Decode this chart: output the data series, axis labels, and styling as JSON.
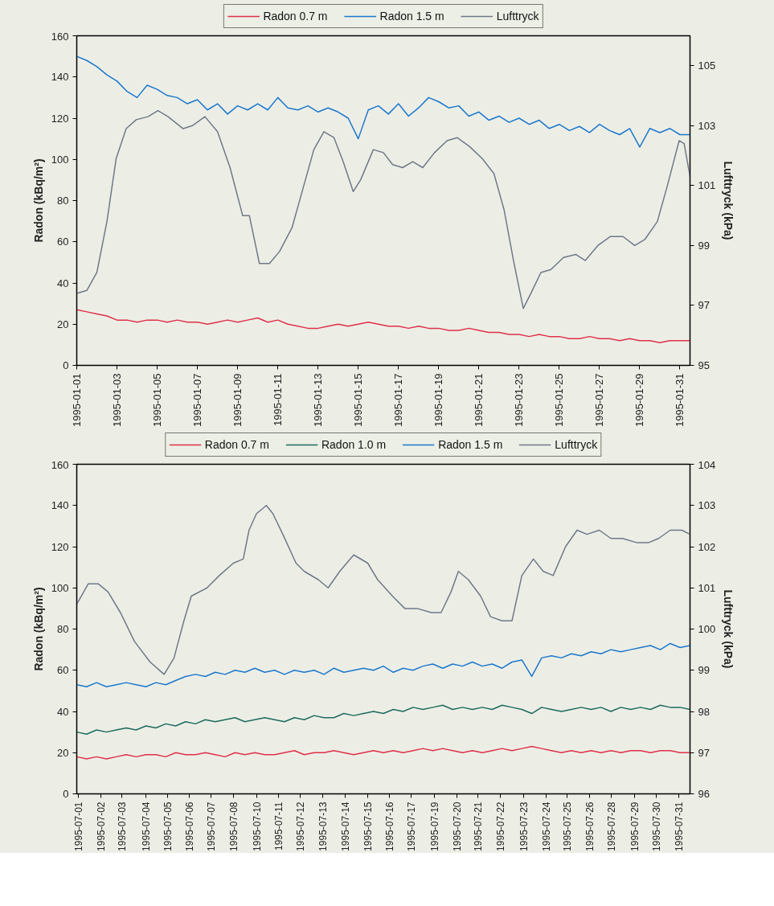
{
  "chart_data": [
    {
      "type": "line",
      "ylabel": "Radon (kBq/m²)",
      "y2label": "Lufttryck (kPa)",
      "legend": "top",
      "grid": false,
      "xlim": [
        "1995-01-01T00:00",
        "1995-01-31T12:00"
      ],
      "ylim": [
        0,
        160
      ],
      "yticks": [
        0,
        20,
        40,
        60,
        80,
        100,
        120,
        140,
        160
      ],
      "y2lim": [
        95,
        106
      ],
      "y2ticks": [
        95,
        97,
        99,
        101,
        103,
        105
      ],
      "xticks": [
        "1995-01-01",
        "1995-01-03",
        "1995-01-05",
        "1995-01-07",
        "1995-01-09",
        "1995-01-11",
        "1995-01-13",
        "1995-01-15",
        "1995-01-17",
        "1995-01-19",
        "1995-01-21",
        "1995-01-23",
        "1995-01-25",
        "1995-01-27",
        "1995-01-29",
        "1995-01-31"
      ],
      "x": [
        "1995-01-01T00:00",
        "1995-01-01T12:00",
        "1995-01-02T00:00",
        "1995-01-02T12:00",
        "1995-01-03T00:00",
        "1995-01-03T12:00",
        "1995-01-04T00:00",
        "1995-01-04T12:00",
        "1995-01-05T00:00",
        "1995-01-05T12:00",
        "1995-01-06T00:00",
        "1995-01-06T12:00",
        "1995-01-07T00:00",
        "1995-01-07T12:00",
        "1995-01-08T00:00",
        "1995-01-08T12:00",
        "1995-01-09T00:00",
        "1995-01-09T12:00",
        "1995-01-10T00:00",
        "1995-01-10T12:00",
        "1995-01-11T00:00",
        "1995-01-11T12:00",
        "1995-01-12T00:00",
        "1995-01-12T12:00",
        "1995-01-13T00:00",
        "1995-01-13T12:00",
        "1995-01-14T00:00",
        "1995-01-14T12:00",
        "1995-01-15T00:00",
        "1995-01-15T12:00",
        "1995-01-16T00:00",
        "1995-01-16T12:00",
        "1995-01-17T00:00",
        "1995-01-17T12:00",
        "1995-01-18T00:00",
        "1995-01-18T12:00",
        "1995-01-19T00:00",
        "1995-01-19T12:00",
        "1995-01-20T00:00",
        "1995-01-20T12:00",
        "1995-01-21T00:00",
        "1995-01-21T12:00",
        "1995-01-22T00:00",
        "1995-01-22T12:00",
        "1995-01-23T00:00",
        "1995-01-23T12:00",
        "1995-01-24T00:00",
        "1995-01-24T12:00",
        "1995-01-25T00:00",
        "1995-01-25T12:00",
        "1995-01-26T00:00",
        "1995-01-26T12:00",
        "1995-01-27T00:00",
        "1995-01-27T12:00",
        "1995-01-28T00:00",
        "1995-01-28T12:00",
        "1995-01-29T00:00",
        "1995-01-29T12:00",
        "1995-01-30T00:00",
        "1995-01-30T12:00",
        "1995-01-31T00:00",
        "1995-01-31T12:00"
      ],
      "series": [
        {
          "name": "Radon 0.7 m",
          "color": "#e0304a",
          "values": [
            27,
            26,
            25,
            24,
            22,
            22,
            21,
            22,
            22,
            21,
            22,
            21,
            21,
            20,
            21,
            22,
            21,
            22,
            23,
            21,
            22,
            20,
            19,
            18,
            18,
            19,
            20,
            19,
            20,
            21,
            20,
            19,
            19,
            18,
            19,
            18,
            18,
            17,
            17,
            18,
            17,
            16,
            16,
            15,
            15,
            14,
            15,
            14,
            14,
            13,
            13,
            14,
            13,
            13,
            12,
            13,
            12,
            12,
            11,
            12,
            12,
            12
          ]
        },
        {
          "name": "Radon 1.5 m",
          "color": "#1c78cc",
          "values": [
            150,
            148,
            145,
            141,
            138,
            133,
            130,
            136,
            134,
            131,
            130,
            127,
            129,
            124,
            127,
            122,
            126,
            124,
            127,
            124,
            130,
            125,
            124,
            126,
            123,
            125,
            123,
            120,
            110,
            124,
            126,
            122,
            127,
            121,
            125,
            130,
            128,
            125,
            126,
            121,
            123,
            119,
            121,
            118,
            120,
            117,
            119,
            115,
            117,
            114,
            116,
            113,
            117,
            114,
            112,
            115,
            106,
            115,
            113,
            115,
            112,
            112
          ]
        },
        {
          "name": "Lufttryck",
          "color": "#707888",
          "axis": "y2",
          "x": [
            "1995-01-01T00:00",
            "1995-01-01T12:00",
            "1995-01-02T00:00",
            "1995-01-02T12:00",
            "1995-01-02T23:00",
            "1995-01-03T11:00",
            "1995-01-03T23:00",
            "1995-01-04T13:00",
            "1995-01-05T01:00",
            "1995-01-05T13:00",
            "1995-01-06T07:00",
            "1995-01-06T18:00",
            "1995-01-07T09:00",
            "1995-01-08T00:00",
            "1995-01-08T15:00",
            "1995-01-09T06:00",
            "1995-01-09T14:00",
            "1995-01-10T02:00",
            "1995-01-10T14:00",
            "1995-01-11T02:00",
            "1995-01-11T17:00",
            "1995-01-12T07:00",
            "1995-01-12T19:00",
            "1995-01-13T07:00",
            "1995-01-13T19:00",
            "1995-01-14T06:00",
            "1995-01-14T18:00",
            "1995-01-15T03:00",
            "1995-01-15T18:00",
            "1995-01-16T06:00",
            "1995-01-16T17:00",
            "1995-01-17T05:00",
            "1995-01-17T17:00",
            "1995-01-18T05:00",
            "1995-01-18T19:00",
            "1995-01-19T10:00",
            "1995-01-19T22:00",
            "1995-01-20T13:00",
            "1995-01-21T04:00",
            "1995-01-21T18:00",
            "1995-01-22T06:00",
            "1995-01-22T18:00",
            "1995-01-23T05:00",
            "1995-01-23T14:00",
            "1995-01-24T02:00",
            "1995-01-24T14:00",
            "1995-01-25T05:00",
            "1995-01-25T20:00",
            "1995-01-26T07:00",
            "1995-01-26T22:00",
            "1995-01-27T13:00",
            "1995-01-28T04:00",
            "1995-01-28T18:00",
            "1995-01-29T06:00",
            "1995-01-29T21:00",
            "1995-01-30T09:00",
            "1995-01-30T23:00",
            "1995-01-31T05:00",
            "1995-01-31T12:00"
          ],
          "values": [
            97.4,
            97.5,
            98.1,
            99.8,
            101.9,
            102.9,
            103.2,
            103.3,
            103.5,
            103.3,
            102.9,
            103.0,
            103.3,
            102.8,
            101.6,
            100.0,
            100.0,
            98.4,
            98.4,
            98.8,
            99.6,
            101.0,
            102.2,
            102.8,
            102.6,
            101.8,
            100.8,
            101.2,
            102.2,
            102.1,
            101.7,
            101.6,
            101.8,
            101.6,
            102.1,
            102.5,
            102.6,
            102.3,
            101.9,
            101.4,
            100.2,
            98.4,
            96.9,
            97.4,
            98.1,
            98.2,
            98.6,
            98.7,
            98.5,
            99.0,
            99.3,
            99.3,
            99.0,
            99.2,
            99.8,
            101.0,
            102.5,
            102.4,
            101.3
          ]
        }
      ]
    },
    {
      "type": "line",
      "ylabel": "Radon (kBq/m²)",
      "y2label": "Lufttryck (kPa)",
      "legend": "top",
      "grid": false,
      "xlim": [
        "1995-07-01T00:00",
        "1995-08-01T00:00"
      ],
      "ylim": [
        0,
        160
      ],
      "yticks": [
        0,
        20,
        40,
        60,
        80,
        100,
        120,
        140,
        160
      ],
      "y2lim": [
        96,
        104
      ],
      "y2ticks": [
        96,
        97,
        98,
        99,
        100,
        101,
        102,
        103,
        104
      ],
      "xticks": [
        {
          "value": "1995-07-01T02:00",
          "label": "1995-07-01"
        },
        {
          "value": "1995-07-02T05:00",
          "label": "1995-07-02"
        },
        {
          "value": "1995-07-03T07:00",
          "label": "1995-07-03"
        },
        {
          "value": "1995-07-04T12:00",
          "label": "1995-07-04"
        },
        {
          "value": "1995-07-05T14:00",
          "label": "1995-07-05"
        },
        {
          "value": "1995-07-06T17:00",
          "label": "1995-07-06"
        },
        {
          "value": "1995-07-07T19:00",
          "label": "1995-07-07"
        },
        {
          "value": "1995-07-08T22:00",
          "label": "1995-07-08"
        },
        {
          "value": "1995-07-10T02:00",
          "label": "1995-07-10"
        },
        {
          "value": "1995-07-11T05:00",
          "label": "1995-07-11"
        },
        {
          "value": "1995-07-12T07:00",
          "label": "1995-07-12"
        },
        {
          "value": "1995-07-13T10:00",
          "label": "1995-07-13"
        },
        {
          "value": "1995-07-14T14:00",
          "label": "1995-07-14"
        },
        {
          "value": "1995-07-15T17:00",
          "label": "1995-07-15"
        },
        {
          "value": "1995-07-16T19:00",
          "label": "1995-07-16"
        },
        {
          "value": "1995-07-17T22:00",
          "label": "1995-07-17"
        },
        {
          "value": "1995-07-19T02:00",
          "label": "1995-07-19"
        },
        {
          "value": "1995-07-20T05:00",
          "label": "1995-07-20"
        },
        {
          "value": "1995-07-21T07:00",
          "label": "1995-07-21"
        },
        {
          "value": "1995-07-22T10:00",
          "label": "1995-07-22"
        },
        {
          "value": "1995-07-23T14:00",
          "label": "1995-07-23"
        },
        {
          "value": "1995-07-24T17:00",
          "label": "1995-07-24"
        },
        {
          "value": "1995-07-25T19:00",
          "label": "1995-07-25"
        },
        {
          "value": "1995-07-26T22:00",
          "label": "1995-07-26"
        },
        {
          "value": "1995-07-28T00:00",
          "label": "1995-07-28"
        },
        {
          "value": "1995-07-29T05:00",
          "label": "1995-07-29"
        },
        {
          "value": "1995-07-30T07:00",
          "label": "1995-07-30"
        },
        {
          "value": "1995-07-31T10:00",
          "label": "1995-07-31"
        }
      ],
      "x": [
        "1995-07-01T00:00",
        "1995-07-01T12:00",
        "1995-07-02T00:00",
        "1995-07-02T12:00",
        "1995-07-03T00:00",
        "1995-07-03T12:00",
        "1995-07-04T00:00",
        "1995-07-04T12:00",
        "1995-07-05T00:00",
        "1995-07-05T12:00",
        "1995-07-06T00:00",
        "1995-07-06T12:00",
        "1995-07-07T00:00",
        "1995-07-07T12:00",
        "1995-07-08T00:00",
        "1995-07-08T12:00",
        "1995-07-09T00:00",
        "1995-07-09T12:00",
        "1995-07-10T00:00",
        "1995-07-10T12:00",
        "1995-07-11T00:00",
        "1995-07-11T12:00",
        "1995-07-12T00:00",
        "1995-07-12T12:00",
        "1995-07-13T00:00",
        "1995-07-13T12:00",
        "1995-07-14T00:00",
        "1995-07-14T12:00",
        "1995-07-15T00:00",
        "1995-07-15T12:00",
        "1995-07-16T00:00",
        "1995-07-16T12:00",
        "1995-07-17T00:00",
        "1995-07-17T12:00",
        "1995-07-18T00:00",
        "1995-07-18T12:00",
        "1995-07-19T00:00",
        "1995-07-19T12:00",
        "1995-07-20T00:00",
        "1995-07-20T12:00",
        "1995-07-21T00:00",
        "1995-07-21T12:00",
        "1995-07-22T00:00",
        "1995-07-22T12:00",
        "1995-07-23T00:00",
        "1995-07-23T12:00",
        "1995-07-24T00:00",
        "1995-07-24T12:00",
        "1995-07-25T00:00",
        "1995-07-25T12:00",
        "1995-07-26T00:00",
        "1995-07-26T12:00",
        "1995-07-27T00:00",
        "1995-07-27T12:00",
        "1995-07-28T00:00",
        "1995-07-28T12:00",
        "1995-07-29T00:00",
        "1995-07-29T12:00",
        "1995-07-30T00:00",
        "1995-07-30T12:00",
        "1995-07-31T00:00",
        "1995-07-31T12:00",
        "1995-08-01T00:00"
      ],
      "series": [
        {
          "name": "Radon 0.7 m",
          "color": "#e0304a",
          "values": [
            18,
            17,
            18,
            17,
            18,
            19,
            18,
            19,
            19,
            18,
            20,
            19,
            19,
            20,
            19,
            18,
            20,
            19,
            20,
            19,
            19,
            20,
            21,
            19,
            20,
            20,
            21,
            20,
            19,
            20,
            21,
            20,
            21,
            20,
            21,
            22,
            21,
            22,
            21,
            20,
            21,
            20,
            21,
            22,
            21,
            22,
            23,
            22,
            21,
            20,
            21,
            20,
            21,
            20,
            21,
            20,
            21,
            21,
            20,
            21,
            21,
            20,
            20
          ]
        },
        {
          "name": "Radon 1.0 m",
          "color": "#1e6b5c",
          "values": [
            30,
            29,
            31,
            30,
            31,
            32,
            31,
            33,
            32,
            34,
            33,
            35,
            34,
            36,
            35,
            36,
            37,
            35,
            36,
            37,
            36,
            35,
            37,
            36,
            38,
            37,
            37,
            39,
            38,
            39,
            40,
            39,
            41,
            40,
            42,
            41,
            42,
            43,
            41,
            42,
            41,
            42,
            41,
            43,
            42,
            41,
            39,
            42,
            41,
            40,
            41,
            42,
            41,
            42,
            40,
            42,
            41,
            42,
            41,
            43,
            42,
            42,
            41
          ]
        },
        {
          "name": "Radon 1.5 m",
          "color": "#1c78cc",
          "values": [
            53,
            52,
            54,
            52,
            53,
            54,
            53,
            52,
            54,
            53,
            55,
            57,
            58,
            57,
            59,
            58,
            60,
            59,
            61,
            59,
            60,
            58,
            60,
            59,
            60,
            58,
            61,
            59,
            60,
            61,
            60,
            62,
            59,
            61,
            60,
            62,
            63,
            61,
            63,
            62,
            64,
            62,
            63,
            61,
            64,
            65,
            57,
            66,
            67,
            66,
            68,
            67,
            69,
            68,
            70,
            69,
            70,
            71,
            72,
            70,
            73,
            71,
            72
          ]
        },
        {
          "name": "Lufttryck",
          "color": "#707888",
          "axis": "y2",
          "x": [
            "1995-07-01T00:00",
            "1995-07-01T14:00",
            "1995-07-02T02:00",
            "1995-07-02T14:00",
            "1995-07-03T05:00",
            "1995-07-03T22:00",
            "1995-07-04T17:00",
            "1995-07-05T10:00",
            "1995-07-05T22:00",
            "1995-07-06T10:00",
            "1995-07-06T19:00",
            "1995-07-07T14:00",
            "1995-07-08T05:00",
            "1995-07-08T22:00",
            "1995-07-09T10:00",
            "1995-07-09T17:00",
            "1995-07-10T02:00",
            "1995-07-10T14:00",
            "1995-07-10T22:00",
            "1995-07-11T10:00",
            "1995-07-12T02:00",
            "1995-07-12T12:00",
            "1995-07-13T05:00",
            "1995-07-13T17:00",
            "1995-07-14T07:00",
            "1995-07-15T00:00",
            "1995-07-15T17:00",
            "1995-07-16T05:00",
            "1995-07-16T23:00",
            "1995-07-17T14:00",
            "1995-07-18T05:00",
            "1995-07-18T22:00",
            "1995-07-19T10:00",
            "1995-07-19T22:00",
            "1995-07-20T07:00",
            "1995-07-20T19:00",
            "1995-07-21T10:00",
            "1995-07-21T22:00",
            "1995-07-22T12:00",
            "1995-07-23T00:00",
            "1995-07-23T12:00",
            "1995-07-24T02:00",
            "1995-07-24T14:00",
            "1995-07-25T02:00",
            "1995-07-25T17:00",
            "1995-07-26T07:00",
            "1995-07-26T19:00",
            "1995-07-27T10:00",
            "1995-07-28T00:00",
            "1995-07-28T14:00",
            "1995-07-29T07:00",
            "1995-07-29T22:00",
            "1995-07-30T10:00",
            "1995-07-31T00:00",
            "1995-07-31T14:00",
            "1995-08-01T00:00"
          ],
          "values": [
            100.6,
            101.1,
            101.1,
            100.9,
            100.4,
            99.7,
            99.2,
            98.9,
            99.3,
            100.2,
            100.8,
            101.0,
            101.3,
            101.6,
            101.7,
            102.4,
            102.8,
            103.0,
            102.8,
            102.3,
            101.6,
            101.4,
            101.2,
            101.0,
            101.4,
            101.8,
            101.6,
            101.2,
            100.8,
            100.5,
            100.5,
            100.4,
            100.4,
            100.9,
            101.4,
            101.2,
            100.8,
            100.3,
            100.2,
            100.2,
            101.3,
            101.7,
            101.4,
            101.3,
            102.0,
            102.4,
            102.3,
            102.4,
            102.2,
            102.2,
            102.1,
            102.1,
            102.2,
            102.4,
            102.4,
            102.3
          ]
        }
      ]
    }
  ]
}
